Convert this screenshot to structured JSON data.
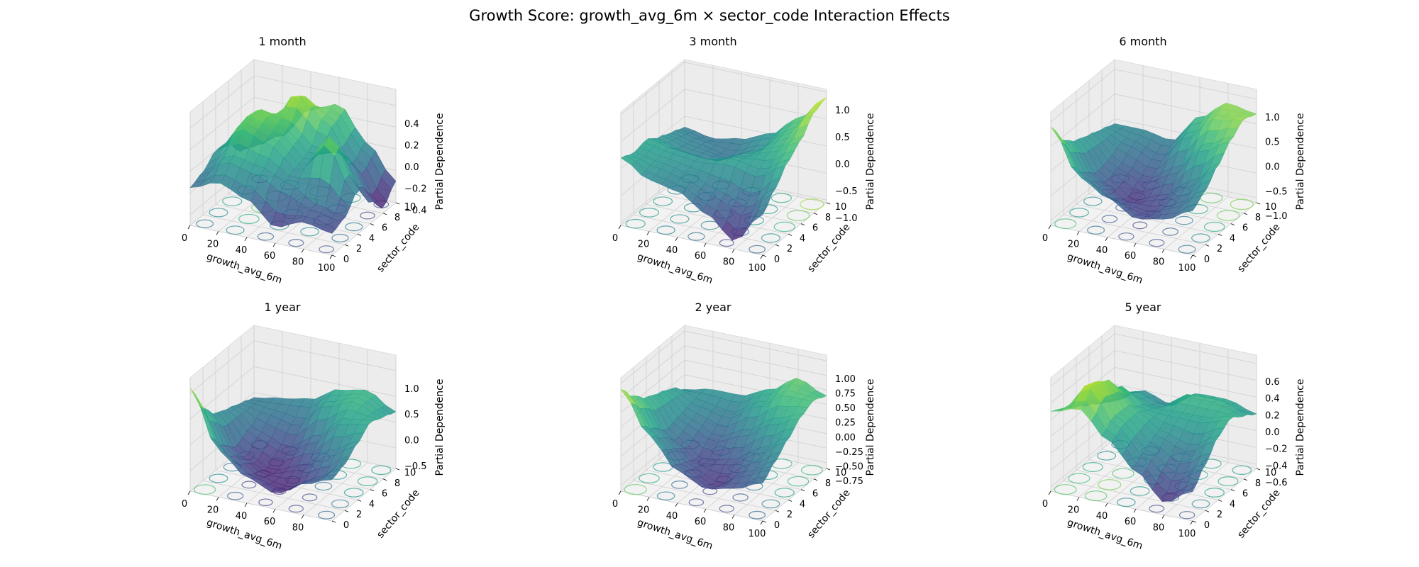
{
  "figure": {
    "title": "Growth Score: growth_avg_6m × sector_code Interaction Effects"
  },
  "chart_data": [
    {
      "type": "surface3d",
      "title": "1 month",
      "xlabel": "growth_avg_6m",
      "ylabel": "sector_code",
      "zlabel": "Partial Dependence",
      "xlim": [
        0,
        100
      ],
      "ylim": [
        0,
        10
      ],
      "zlim": [
        -0.5,
        0.55
      ],
      "xticks": [
        "0",
        "20",
        "40",
        "60",
        "80",
        "100"
      ],
      "yticks": [
        "0",
        "2",
        "4",
        "6",
        "8",
        "10"
      ],
      "zticks": [
        "−0.4",
        "−0.2",
        "0.0",
        "0.2",
        "0.4"
      ],
      "ztick_values": [
        -0.4,
        -0.2,
        0.0,
        0.2,
        0.4
      ],
      "x": [
        0,
        20,
        40,
        60,
        80,
        100
      ],
      "y": [
        0,
        2,
        4,
        6,
        8,
        10
      ],
      "z": [
        [
          -0.15,
          -0.05,
          -0.15,
          -0.35,
          -0.25,
          -0.3
        ],
        [
          -0.1,
          0.1,
          0.05,
          -0.05,
          -0.2,
          -0.25
        ],
        [
          0.0,
          0.3,
          0.2,
          0.0,
          0.35,
          -0.1
        ],
        [
          -0.05,
          0.35,
          0.25,
          0.05,
          0.1,
          -0.3
        ],
        [
          -0.2,
          0.1,
          0.45,
          0.25,
          -0.1,
          -0.45
        ],
        [
          -0.25,
          -0.1,
          0.2,
          0.3,
          0.0,
          -0.3
        ]
      ],
      "grid": true,
      "colormap": "viridis",
      "contours": "floor"
    },
    {
      "type": "surface3d",
      "title": "3 month",
      "xlabel": "growth_avg_6m",
      "ylabel": "sector_code",
      "zlabel": "Partial Dependence",
      "xlim": [
        0,
        100
      ],
      "ylim": [
        0,
        10
      ],
      "zlim": [
        -1.05,
        1.05
      ],
      "xticks": [
        "0",
        "20",
        "40",
        "60",
        "80",
        "100"
      ],
      "yticks": [
        "0",
        "2",
        "4",
        "6",
        "8",
        "10"
      ],
      "zticks": [
        "−1.0",
        "−0.5",
        "0.0",
        "0.5",
        "1.0"
      ],
      "ztick_values": [
        -1.0,
        -0.5,
        0.0,
        0.5,
        1.0
      ],
      "x": [
        0,
        20,
        40,
        60,
        80,
        100
      ],
      "y": [
        0,
        2,
        4,
        6,
        8,
        10
      ],
      "z": [
        [
          0.2,
          -0.1,
          -0.2,
          -0.5,
          -0.9,
          -0.3
        ],
        [
          0.1,
          0.0,
          -0.1,
          -0.3,
          -0.5,
          0.0
        ],
        [
          0.15,
          0.05,
          0.0,
          0.1,
          0.0,
          0.3
        ],
        [
          0.0,
          -0.15,
          -0.2,
          0.0,
          0.2,
          0.5
        ],
        [
          -0.1,
          -0.2,
          -0.3,
          -0.1,
          0.3,
          0.8
        ],
        [
          -0.2,
          -0.3,
          -0.2,
          0.0,
          0.4,
          0.9
        ]
      ],
      "grid": true,
      "colormap": "viridis",
      "contours": "floor"
    },
    {
      "type": "surface3d",
      "title": "6 month",
      "xlabel": "growth_avg_6m",
      "ylabel": "sector_code",
      "zlabel": "Partial Dependence",
      "xlim": [
        0,
        100
      ],
      "ylim": [
        0,
        10
      ],
      "zlim": [
        -1.1,
        1.2
      ],
      "xticks": [
        "0",
        "20",
        "40",
        "60",
        "80",
        "100"
      ],
      "yticks": [
        "0",
        "2",
        "4",
        "6",
        "8",
        "10"
      ],
      "zticks": [
        "−1.0",
        "−0.5",
        "0.0",
        "0.5",
        "1.0"
      ],
      "ztick_values": [
        -1.0,
        -0.5,
        0.0,
        0.5,
        1.0
      ],
      "x": [
        0,
        20,
        40,
        60,
        80,
        100
      ],
      "y": [
        0,
        2,
        4,
        6,
        8,
        10
      ],
      "z": [
        [
          0.9,
          0.0,
          -0.3,
          -0.6,
          -0.5,
          -0.2
        ],
        [
          0.4,
          -0.3,
          -0.6,
          -0.7,
          -0.4,
          0.0
        ],
        [
          0.2,
          -0.5,
          -0.8,
          -0.6,
          -0.2,
          0.3
        ],
        [
          0.1,
          -0.4,
          -0.6,
          -0.3,
          0.3,
          0.6
        ],
        [
          0.0,
          -0.2,
          -0.4,
          0.2,
          0.7,
          0.8
        ],
        [
          -0.1,
          -0.1,
          -0.2,
          0.4,
          0.8,
          0.7
        ]
      ],
      "grid": true,
      "colormap": "viridis",
      "contours": "floor"
    },
    {
      "type": "surface3d",
      "title": "1 year",
      "xlabel": "growth_avg_6m",
      "ylabel": "sector_code",
      "zlabel": "Partial Dependence",
      "xlim": [
        0,
        100
      ],
      "ylim": [
        0,
        10
      ],
      "zlim": [
        -0.9,
        1.3
      ],
      "xticks": [
        "0",
        "20",
        "40",
        "60",
        "80"
      ],
      "yticks": [
        "0",
        "2",
        "4",
        "6",
        "8",
        "10"
      ],
      "zticks": [
        "−0.5",
        "0.0",
        "0.5",
        "1.0"
      ],
      "ztick_values": [
        -0.5,
        0.0,
        0.5,
        1.0
      ],
      "x": [
        0,
        20,
        40,
        60,
        80,
        100
      ],
      "y": [
        0,
        2,
        4,
        6,
        8,
        10
      ],
      "z": [
        [
          1.1,
          0.0,
          -0.4,
          -0.6,
          -0.3,
          -0.1
        ],
        [
          0.5,
          -0.3,
          -0.6,
          -0.7,
          -0.4,
          0.0
        ],
        [
          0.2,
          -0.5,
          -0.7,
          -0.5,
          -0.1,
          0.2
        ],
        [
          0.1,
          -0.3,
          -0.5,
          -0.2,
          0.3,
          0.4
        ],
        [
          0.0,
          -0.1,
          -0.2,
          0.3,
          0.5,
          0.3
        ],
        [
          -0.1,
          0.0,
          0.1,
          0.4,
          0.5,
          0.2
        ]
      ],
      "grid": true,
      "colormap": "viridis",
      "contours": "floor"
    },
    {
      "type": "surface3d",
      "title": "2 year",
      "xlabel": "growth_avg_6m",
      "ylabel": "sector_code",
      "zlabel": "Partial Dependence",
      "xlim": [
        0,
        100
      ],
      "ylim": [
        0,
        10
      ],
      "zlim": [
        -0.85,
        1.1
      ],
      "xticks": [
        "0",
        "20",
        "40",
        "60",
        "80",
        "100"
      ],
      "yticks": [
        "0",
        "2",
        "4",
        "6",
        "8",
        "10"
      ],
      "zticks": [
        "−0.75",
        "−0.50",
        "−0.25",
        "0.00",
        "0.25",
        "0.50",
        "0.75",
        "1.00"
      ],
      "ztick_values": [
        -0.75,
        -0.5,
        -0.25,
        0.0,
        0.25,
        0.5,
        0.75,
        1.0
      ],
      "x": [
        0,
        20,
        40,
        60,
        80,
        100
      ],
      "y": [
        0,
        2,
        4,
        6,
        8,
        10
      ],
      "z": [
        [
          0.9,
          0.2,
          -0.3,
          -0.5,
          -0.4,
          -0.2
        ],
        [
          0.6,
          0.0,
          -0.4,
          -0.6,
          -0.3,
          0.0
        ],
        [
          0.4,
          -0.2,
          -0.5,
          -0.4,
          -0.1,
          0.2
        ],
        [
          0.3,
          -0.1,
          -0.3,
          -0.1,
          0.2,
          0.4
        ],
        [
          0.2,
          0.0,
          -0.1,
          0.2,
          0.5,
          0.5
        ],
        [
          0.0,
          0.1,
          0.1,
          0.3,
          0.6,
          0.4
        ]
      ],
      "grid": true,
      "colormap": "viridis",
      "contours": "floor"
    },
    {
      "type": "surface3d",
      "title": "5 year",
      "xlabel": "growth_avg_6m",
      "ylabel": "sector_code",
      "zlabel": "Partial Dependence",
      "xlim": [
        0,
        100
      ],
      "ylim": [
        0,
        10
      ],
      "zlim": [
        -0.65,
        0.7
      ],
      "xticks": [
        "0",
        "20",
        "40",
        "60",
        "80",
        "100"
      ],
      "yticks": [
        "0",
        "2",
        "4",
        "6",
        "8",
        "10"
      ],
      "zticks": [
        "−0.6",
        "−0.4",
        "−0.2",
        "0.0",
        "0.2",
        "0.4",
        "0.6"
      ],
      "ztick_values": [
        -0.6,
        -0.4,
        -0.2,
        0.0,
        0.2,
        0.4,
        0.6
      ],
      "x": [
        0,
        20,
        40,
        60,
        80,
        100
      ],
      "y": [
        0,
        2,
        4,
        6,
        8,
        10
      ],
      "z": [
        [
          0.3,
          0.4,
          0.1,
          -0.2,
          -0.5,
          -0.3
        ],
        [
          0.2,
          0.6,
          0.2,
          -0.1,
          -0.3,
          -0.1
        ],
        [
          0.1,
          0.5,
          0.2,
          0.0,
          -0.1,
          0.1
        ],
        [
          0.0,
          0.3,
          0.1,
          0.1,
          0.1,
          0.2
        ],
        [
          -0.1,
          0.1,
          0.0,
          0.2,
          0.2,
          0.1
        ],
        [
          -0.2,
          0.0,
          -0.1,
          0.1,
          0.1,
          0.0
        ]
      ],
      "grid": true,
      "colormap": "viridis",
      "contours": "floor"
    }
  ]
}
